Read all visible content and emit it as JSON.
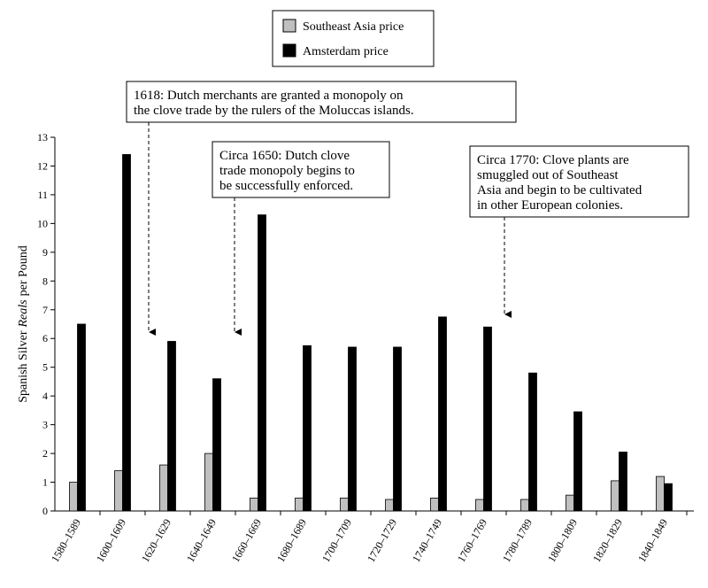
{
  "chart_data": {
    "type": "bar",
    "ylabel": [
      "Spanish Silver",
      "Reals",
      "per Pound"
    ],
    "categories": [
      "1580–1589",
      "1600–1609",
      "1620–1629",
      "1640–1649",
      "1660–1669",
      "1680–1689",
      "1700–1709",
      "1720–1729",
      "1740–1749",
      "1760–1769",
      "1780–1789",
      "1800–1809",
      "1820–1829",
      "1840–1849"
    ],
    "series": [
      {
        "name": "Southeast Asia price",
        "color": "#c0c0c0",
        "values": [
          1.0,
          1.4,
          1.6,
          2.0,
          0.45,
          0.45,
          0.45,
          0.4,
          0.45,
          0.4,
          0.4,
          0.55,
          1.05,
          1.2
        ]
      },
      {
        "name": "Amsterdam price",
        "color": "#000000",
        "values": [
          6.5,
          12.4,
          5.9,
          4.6,
          10.3,
          5.75,
          5.7,
          5.7,
          6.75,
          6.4,
          4.8,
          3.45,
          2.05,
          0.95
        ]
      }
    ],
    "ylim": [
      0,
      13
    ],
    "yticks": [
      0,
      1,
      2,
      3,
      4,
      5,
      6,
      7,
      8,
      9,
      10,
      11,
      12,
      13
    ],
    "legend": "top",
    "annotations": [
      {
        "lines": [
          "1618: Dutch merchants are granted a monopoly on",
          "the clove trade by the rulers of the Moluccas islands."
        ]
      },
      {
        "lines": [
          "Circa 1650: Dutch clove",
          "trade monopoly begins to",
          "be successfully enforced."
        ]
      },
      {
        "lines": [
          "Circa 1770: Clove plants are",
          "smuggled out of Southeast",
          "Asia and begin to be cultivated",
          "in other European colonies."
        ]
      }
    ]
  }
}
